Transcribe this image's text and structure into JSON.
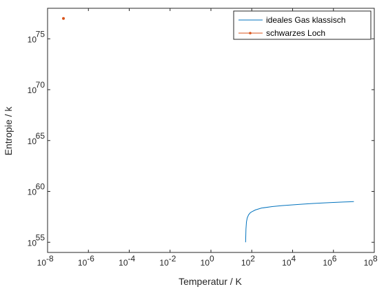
{
  "chart_data": {
    "type": "line",
    "xlabel": "Temperatur / K",
    "ylabel": "Entropie / k",
    "x_scale": "log",
    "y_scale": "log",
    "xlim": [
      1e-08,
      100000000.0
    ],
    "ylim": [
      1e+54,
      1e+78
    ],
    "grid": false,
    "legend_position": "top-right",
    "x_ticks": [
      {
        "value": 1e-08,
        "base": "10",
        "exp": "-8"
      },
      {
        "value": 1e-06,
        "base": "10",
        "exp": "-6"
      },
      {
        "value": 0.0001,
        "base": "10",
        "exp": "-4"
      },
      {
        "value": 0.01,
        "base": "10",
        "exp": "-2"
      },
      {
        "value": 1,
        "base": "10",
        "exp": "0"
      },
      {
        "value": 100.0,
        "base": "10",
        "exp": "2"
      },
      {
        "value": 10000.0,
        "base": "10",
        "exp": "4"
      },
      {
        "value": 1000000.0,
        "base": "10",
        "exp": "6"
      },
      {
        "value": 100000000.0,
        "base": "10",
        "exp": "8"
      }
    ],
    "y_ticks": [
      {
        "value": 1e+55,
        "base": "10",
        "exp": "55"
      },
      {
        "value": 1e+60,
        "base": "10",
        "exp": "60"
      },
      {
        "value": 1e+65,
        "base": "10",
        "exp": "65"
      },
      {
        "value": 1e+70,
        "base": "10",
        "exp": "70"
      },
      {
        "value": 1e+75,
        "base": "10",
        "exp": "75"
      }
    ],
    "series": [
      {
        "name": "ideales Gas klassisch",
        "color": "#0072bd",
        "marker": "none",
        "points": [
          [
            50,
            1e+55
          ],
          [
            52,
            2e+56
          ],
          [
            55,
            1e+57
          ],
          [
            60,
            2.5e+57
          ],
          [
            70,
            5e+57
          ],
          [
            85,
            8e+57
          ],
          [
            100,
            1e+58
          ],
          [
            150,
            1.5e+58
          ],
          [
            300,
            2.3e+58
          ],
          [
            1000,
            3.2e+58
          ],
          [
            3000,
            4e+58
          ],
          [
            10000,
            4.8e+58
          ],
          [
            30000,
            5.6e+58
          ],
          [
            100000,
            6.5e+58
          ],
          [
            300000,
            7.3e+58
          ],
          [
            1000000,
            8.2e+58
          ],
          [
            3000000,
            9e+58
          ],
          [
            10000000,
            1e+59
          ]
        ]
      },
      {
        "name": "schwarzes Loch",
        "color": "#d95319",
        "marker": "dot",
        "points": [
          [
            6e-08,
            1e+77
          ]
        ]
      }
    ]
  }
}
